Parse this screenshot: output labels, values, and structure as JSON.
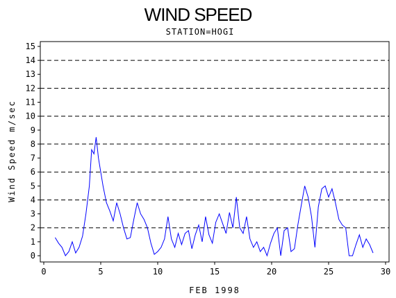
{
  "chart_data": {
    "type": "line",
    "title": "WIND SPEED",
    "subtitle": "STATION=HOGI",
    "xlabel": "FEB 1998",
    "ylabel": "Wind Speed m/sec",
    "xlim": [
      0,
      30
    ],
    "ylim": [
      0,
      15.5
    ],
    "x_ticks": [
      0,
      5,
      10,
      15,
      20,
      25,
      30
    ],
    "y_ticks": [
      0,
      1,
      2,
      3,
      4,
      5,
      6,
      7,
      8,
      9,
      10,
      11,
      12,
      13,
      14,
      15
    ],
    "gridlines_y": [
      2,
      4,
      6,
      8,
      10,
      12,
      14
    ],
    "grid_style": "dashed",
    "series": [
      {
        "color": "#0000ff",
        "x": [
          1.0,
          1.3,
          1.6,
          1.9,
          2.2,
          2.5,
          2.8,
          3.1,
          3.4,
          3.7,
          4.0,
          4.2,
          4.4,
          4.6,
          4.8,
          5.0,
          5.2,
          5.5,
          5.8,
          6.1,
          6.4,
          6.7,
          7.0,
          7.3,
          7.6,
          7.9,
          8.2,
          8.5,
          8.8,
          9.1,
          9.4,
          9.7,
          10.0,
          10.3,
          10.6,
          10.9,
          11.2,
          11.5,
          11.8,
          12.1,
          12.4,
          12.7,
          13.0,
          13.3,
          13.6,
          13.9,
          14.2,
          14.5,
          14.8,
          15.1,
          15.4,
          15.7,
          16.0,
          16.3,
          16.6,
          16.9,
          17.2,
          17.5,
          17.8,
          18.1,
          18.4,
          18.7,
          19.0,
          19.3,
          19.6,
          19.9,
          20.2,
          20.5,
          20.8,
          21.1,
          21.4,
          21.7,
          22.0,
          22.3,
          22.6,
          22.9,
          23.2,
          23.5,
          23.8,
          24.1,
          24.4,
          24.7,
          25.0,
          25.3,
          25.6,
          25.9,
          26.2,
          26.5,
          26.8,
          27.1,
          27.4,
          27.7,
          28.0,
          28.3,
          28.6,
          28.9
        ],
        "values": [
          1.3,
          0.9,
          0.6,
          0.0,
          0.3,
          1.0,
          0.2,
          0.6,
          1.4,
          3.0,
          5.0,
          7.6,
          7.3,
          8.5,
          7.0,
          6.0,
          5.0,
          3.8,
          3.2,
          2.5,
          3.8,
          3.0,
          2.0,
          1.2,
          1.3,
          2.6,
          3.8,
          3.0,
          2.6,
          2.0,
          0.9,
          0.1,
          0.3,
          0.6,
          1.2,
          2.8,
          1.2,
          0.6,
          1.6,
          0.8,
          1.6,
          1.8,
          0.5,
          1.5,
          2.2,
          1.0,
          2.8,
          1.5,
          0.9,
          2.4,
          3.0,
          2.3,
          1.6,
          3.1,
          2.0,
          4.2,
          2.0,
          1.6,
          2.8,
          1.2,
          0.6,
          1.0,
          0.3,
          0.6,
          0.0,
          0.9,
          1.6,
          2.0,
          0.0,
          1.8,
          2.0,
          0.3,
          0.5,
          2.2,
          3.6,
          5.0,
          4.2,
          2.8,
          0.6,
          3.5,
          4.8,
          5.0,
          4.2,
          4.8,
          3.8,
          2.6,
          2.2,
          2.0,
          0.0,
          0.0,
          0.8,
          1.5,
          0.6,
          1.2,
          0.8,
          0.2
        ]
      }
    ]
  }
}
